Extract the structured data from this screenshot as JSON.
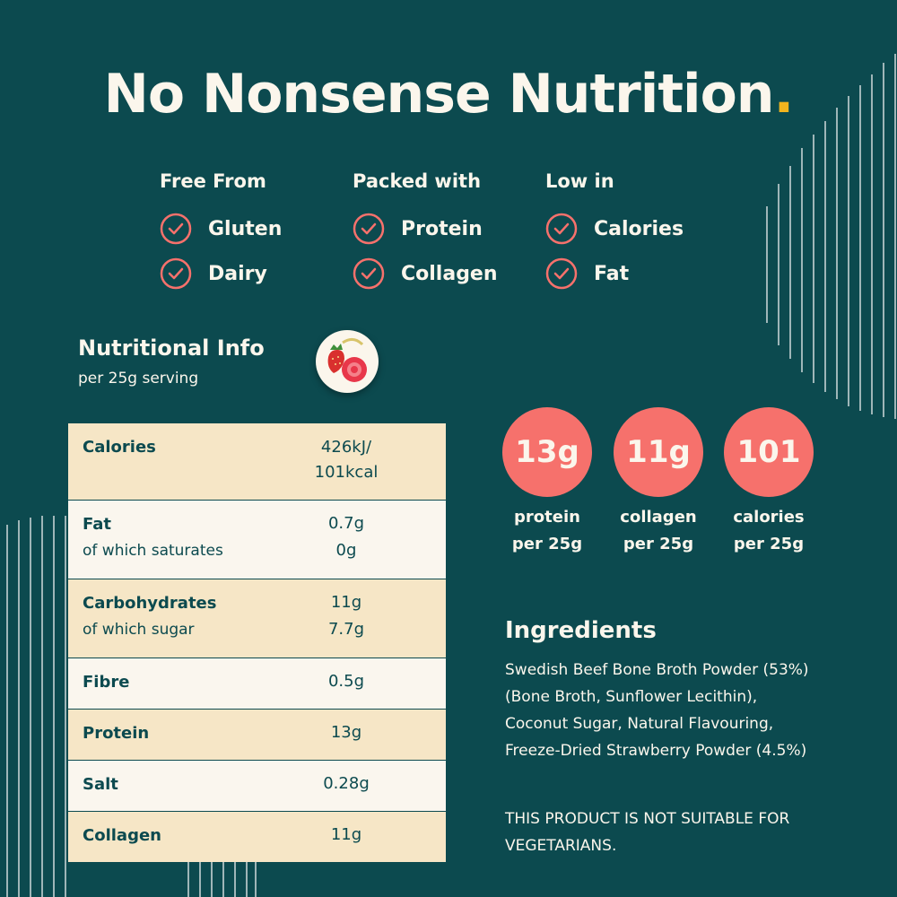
{
  "title": {
    "text": "No Nonsense Nutrition",
    "dot": "."
  },
  "columns": [
    {
      "heading": "Free From",
      "items": [
        "Gluten",
        "Dairy"
      ]
    },
    {
      "heading": "Packed with",
      "items": [
        "Protein",
        "Collagen"
      ]
    },
    {
      "heading": "Low in",
      "items": [
        "Calories",
        "Fat"
      ]
    }
  ],
  "nutritional_info": {
    "title": "Nutritional Info",
    "subtitle": "per 25g serving",
    "rows": [
      {
        "name": "Calories",
        "value": "426kJ/",
        "value2": "101kcal"
      },
      {
        "name": "Fat",
        "value": "0.7g",
        "sub": "of which saturates",
        "sub_value": "0g"
      },
      {
        "name": "Carbohydrates",
        "value": "11g",
        "sub": "of which sugar",
        "sub_value": "7.7g"
      },
      {
        "name": "Fibre",
        "value": "0.5g"
      },
      {
        "name": "Protein",
        "value": "13g"
      },
      {
        "name": "Salt",
        "value": "0.28g"
      },
      {
        "name": "Collagen",
        "value": "11g"
      }
    ]
  },
  "stats": [
    {
      "value": "13g",
      "line1": "protein",
      "line2": "per 25g"
    },
    {
      "value": "11g",
      "line1": "collagen",
      "line2": "per 25g"
    },
    {
      "value": "101",
      "line1": "calories",
      "line2": "per 25g"
    }
  ],
  "ingredients": {
    "title": "Ingredients",
    "lines": [
      "Swedish Beef Bone Broth Powder (53%)",
      "(Bone Broth, Sunflower Lecithin),",
      "Coconut Sugar, Natural Flavouring,",
      "Freeze-Dried Strawberry Powder (4.5%)"
    ]
  },
  "warning": {
    "lines": [
      "THIS PRODUCT IS NOT SUITABLE FOR",
      "VEGETARIANS."
    ]
  },
  "colors": {
    "background": "#0c4a4f",
    "cream": "#fbf6ec",
    "accent_coral": "#f6716c",
    "accent_yellow": "#f2b41e",
    "table_beige": "#f6e6c6",
    "table_cream": "#faf6ee"
  },
  "icons": [
    "check-circle-icon",
    "strawberry-icon"
  ]
}
